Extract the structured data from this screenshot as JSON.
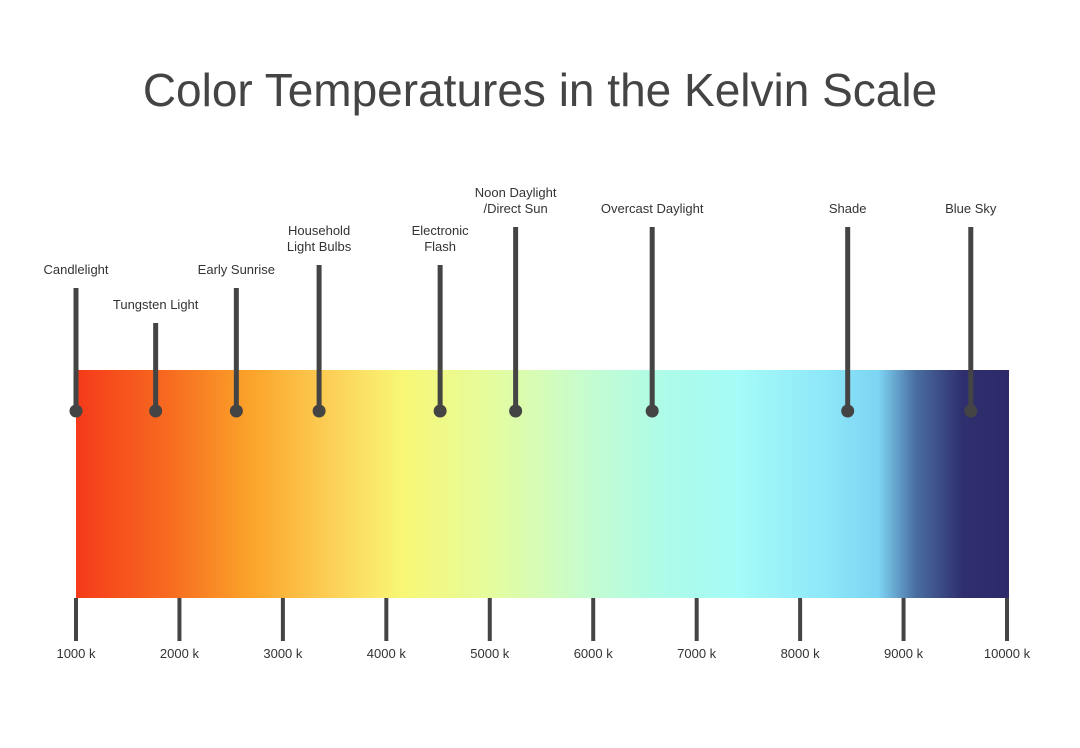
{
  "chart_data": {
    "type": "scale",
    "title": "Color Temperatures in the Kelvin Scale",
    "xlim": [
      1000,
      10000
    ],
    "xticks": [
      {
        "value": 1000,
        "label": "1000 k"
      },
      {
        "value": 2000,
        "label": "2000 k"
      },
      {
        "value": 3000,
        "label": "3000 k"
      },
      {
        "value": 4000,
        "label": "4000 k"
      },
      {
        "value": 5000,
        "label": "5000 k"
      },
      {
        "value": 6000,
        "label": "6000 k"
      },
      {
        "value": 7000,
        "label": "7000 k"
      },
      {
        "value": 8000,
        "label": "8000 k"
      },
      {
        "value": 9000,
        "label": "9000 k"
      },
      {
        "value": 10000,
        "label": "10000 k"
      }
    ],
    "markers": [
      {
        "label": [
          "Candlelight"
        ],
        "value": 1000
      },
      {
        "label": [
          "Tungsten Light"
        ],
        "value": 1770
      },
      {
        "label": [
          "Early Sunrise"
        ],
        "value": 2550
      },
      {
        "label": [
          "Household",
          "Light Bulbs"
        ],
        "value": 3350
      },
      {
        "label": [
          "Electronic",
          "Flash"
        ],
        "value": 4520
      },
      {
        "label": [
          "Noon Daylight",
          "/Direct Sun"
        ],
        "value": 5250
      },
      {
        "label": [
          "Overcast Daylight"
        ],
        "value": 6570
      },
      {
        "label": [
          "Shade"
        ],
        "value": 8460
      },
      {
        "label": [
          "Blue Sky"
        ],
        "value": 9650
      }
    ],
    "color": "#444444"
  }
}
